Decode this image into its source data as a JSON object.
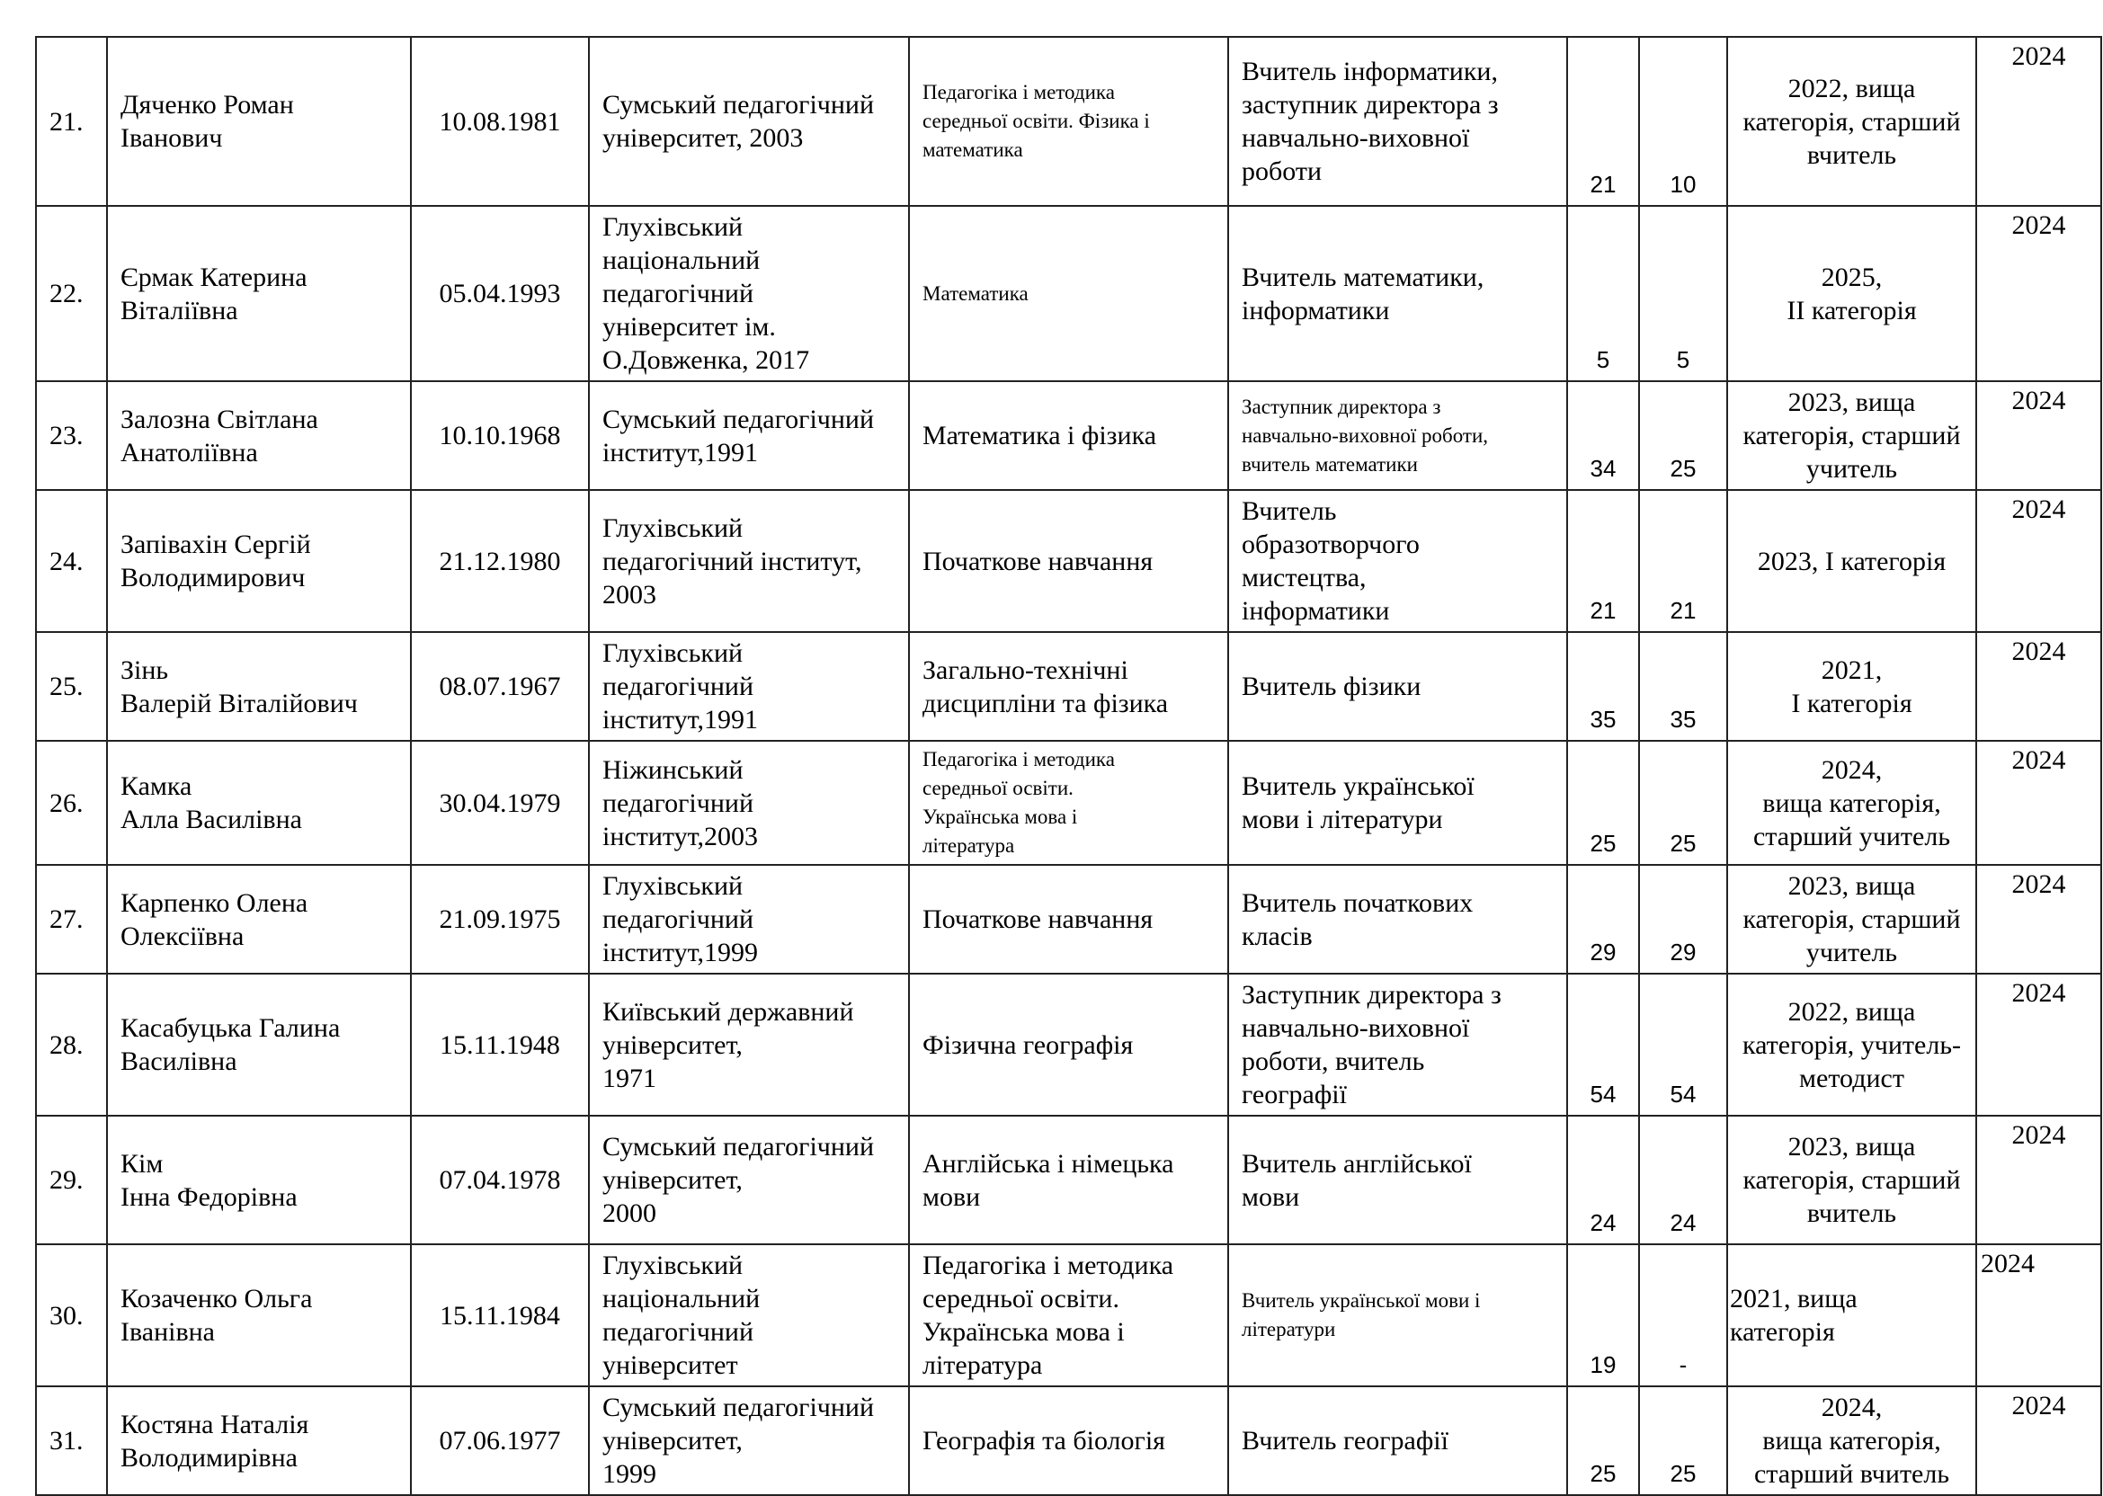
{
  "rows": [
    {
      "num": "21.",
      "name": "Дяченко Роман\nІванович",
      "date": "10.08.1981",
      "univ": "Сумський   педагогічний\nуніверситет, 2003",
      "spec": "Педагогіка і методика\nсередньої освіти. Фізика і\nматематика",
      "spec_small": true,
      "position": "Вчитель інформатики,\nзаступник директора з\nнавчально-виховної\nроботи",
      "position_small": false,
      "years_total": "21",
      "years_ped": "10",
      "category": "2022, вища\nкатегорія, старший\nвчитель",
      "year": "2024"
    },
    {
      "num": "22.",
      "name": "Єрмак Катерина\nВіталіївна",
      "date": "05.04.1993",
      "univ": "Глухівський\nнаціональний\nпедагогічний\nуніверситет              ім.\nО.Довженка, 2017",
      "spec": "Математика",
      "spec_small": true,
      "position": "Вчитель математики,\nінформатики",
      "position_small": false,
      "years_total": "5",
      "years_ped": "5",
      "category": "2025,\nII категорія",
      "year": "2024"
    },
    {
      "num": "23.",
      "name": "Залозна Світлана\nАнатоліївна",
      "date": "10.10.1968",
      "univ": "Сумський   педагогічний\nінститут,1991",
      "spec": "Математика  і фізика",
      "spec_small": false,
      "position": " Заступник директора з\nнавчально-виховної роботи,\nвчитель математики",
      "position_small": true,
      "years_total": "34",
      "years_ped": "25",
      "category": "2023, вища\nкатегорія, старший\nучитель",
      "year": "2024"
    },
    {
      "num": "24.",
      "name": "Запівахін Сергій\nВолодимирович",
      "date": "21.12.1980",
      "univ": "Глухівський\nпедагогічний    інститут,\n2003",
      "spec": "Початкове навчання",
      "spec_small": false,
      "position": "Вчитель\nобразотворчого\nмистецтва,\nінформатики",
      "position_small": false,
      "years_total": "21",
      "years_ped": "21",
      "category": "2023,  І категорія",
      "year": "2024"
    },
    {
      "num": "25.",
      "name": "Зінь\nВалерій Віталійович",
      "date": "08.07.1967",
      "univ": "Глухівський\nпедагогічний\nінститут,1991",
      "spec": "Загально-технічні\nдисципліни та фізика",
      "spec_small": false,
      "position": "Вчитель фізики",
      "position_small": false,
      "years_total": "35",
      "years_ped": "35",
      "category": "2021,\nІ категорія",
      "year": "2024"
    },
    {
      "num": "26.",
      "name": "Камка\nАлла Василівна",
      "date": "30.04.1979",
      "univ": "Ніжинський\nпедагогічний\nінститут,2003",
      "spec": "Педагогіка і методика\nсередньої освіти.\nУкраїнська мова і\nлітература",
      "spec_small": true,
      "position": "Вчитель української\nмови і літератури",
      "position_small": false,
      "years_total": "25",
      "years_ped": "25",
      "category": "2024,\nвища категорія,\nстарший учитель",
      "year": "2024"
    },
    {
      "num": "27.",
      "name": "Карпенко Олена\nОлексіївна",
      "date": "21.09.1975",
      "univ": "Глухівський\nпедагогічний\nінститут,1999",
      "spec": "Початкове навчання",
      "spec_small": false,
      "position": "Вчитель  початкових\nкласів",
      "position_small": false,
      "years_total": "29",
      "years_ped": "29",
      "category": "2023, вища\nкатегорія, старший\nучитель",
      "year": "2024"
    },
    {
      "num": "28.",
      "name": "Касабуцька Галина\nВасилівна",
      "date": "15.11.1948",
      "univ": "Київський     державний\nуніверситет,\n1971",
      "spec": "Фізична географія",
      "spec_small": false,
      "position": " Заступник директора з\nнавчально-виховної\nроботи, вчитель\nгеографії",
      "position_small": false,
      "years_total": "54",
      "years_ped": "54",
      "category": "2022, вища\nкатегорія, учитель-\nметодист",
      "year": "2024"
    },
    {
      "num": "29.",
      "name": "Кім\nІнна Федорівна\n ",
      "date": "07.04.1978",
      "univ": "Сумський   педагогічний\nуніверситет,\n2000",
      "spec": "Англійська  і німецька\nмови",
      "spec_small": false,
      "position": " Вчитель англійської\nмови",
      "position_small": false,
      "years_total": "24",
      "years_ped": "24",
      "category": "2023, вища\nкатегорія, старший\nвчитель",
      "year": "2024"
    },
    {
      "num": "30.",
      "name": "Козаченко Ольга\nІванівна",
      "date": "15.11.1984",
      "univ": "Глухівський\nнаціональний\nпедагогічний\nуніверситет",
      "spec": "Педагогіка і методика\nсередньої освіти.\nУкраїнська мова і\nлітература",
      "spec_small": false,
      "position": "Вчитель української мови і\nлітератури",
      "position_small": true,
      "years_total": "19",
      "years_ped": "-",
      "category": "2021, вища\nкатегорія",
      "year": "2024"
    },
    {
      "num": "31.",
      "name": "Костяна Наталія\nВолодимирівна",
      "date": "07.06.1977",
      "univ": "Сумський   педагогічний\nуніверситет,\n1999",
      "spec": "Географія та біологія",
      "spec_small": false,
      "position": "Вчитель географії",
      "position_small": false,
      "years_total": "25",
      "years_ped": "25",
      "category": "2024,\nвища категорія,\nстарший вчитель",
      "year": "2024"
    }
  ]
}
